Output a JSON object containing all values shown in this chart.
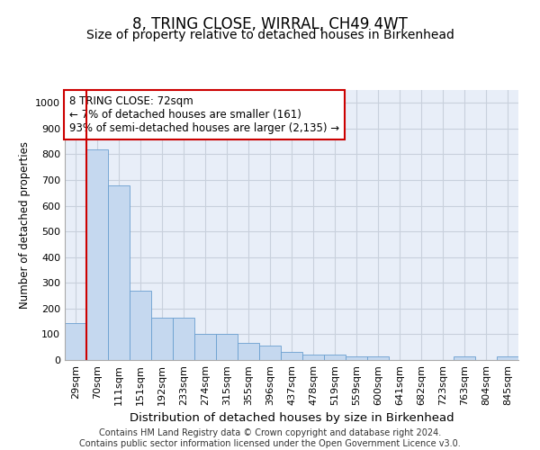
{
  "title": "8, TRING CLOSE, WIRRAL, CH49 4WT",
  "subtitle": "Size of property relative to detached houses in Birkenhead",
  "xlabel": "Distribution of detached houses by size in Birkenhead",
  "ylabel": "Number of detached properties",
  "categories": [
    "29sqm",
    "70sqm",
    "111sqm",
    "151sqm",
    "192sqm",
    "233sqm",
    "274sqm",
    "315sqm",
    "355sqm",
    "396sqm",
    "437sqm",
    "478sqm",
    "519sqm",
    "559sqm",
    "600sqm",
    "641sqm",
    "682sqm",
    "723sqm",
    "763sqm",
    "804sqm",
    "845sqm"
  ],
  "values": [
    143,
    820,
    680,
    270,
    165,
    165,
    100,
    100,
    65,
    55,
    30,
    20,
    20,
    13,
    13,
    0,
    0,
    0,
    13,
    0,
    13
  ],
  "bar_color": "#c5d8ef",
  "bar_edge_color": "#6a9fd0",
  "bar_width": 1.0,
  "ylim": [
    0,
    1050
  ],
  "yticks": [
    0,
    100,
    200,
    300,
    400,
    500,
    600,
    700,
    800,
    900,
    1000
  ],
  "annotation_box_text": "8 TRING CLOSE: 72sqm\n← 7% of detached houses are smaller (161)\n93% of semi-detached houses are larger (2,135) →",
  "annotation_box_color": "#ffffff",
  "annotation_box_edge_color": "#cc0000",
  "property_line_x": 0.5,
  "property_line_color": "#cc0000",
  "grid_color": "#c8d0dc",
  "background_color": "#e8eef8",
  "footer_text": "Contains HM Land Registry data © Crown copyright and database right 2024.\nContains public sector information licensed under the Open Government Licence v3.0.",
  "title_fontsize": 12,
  "subtitle_fontsize": 10,
  "xlabel_fontsize": 9.5,
  "ylabel_fontsize": 8.5,
  "tick_fontsize": 8,
  "annotation_fontsize": 8.5,
  "footer_fontsize": 7
}
